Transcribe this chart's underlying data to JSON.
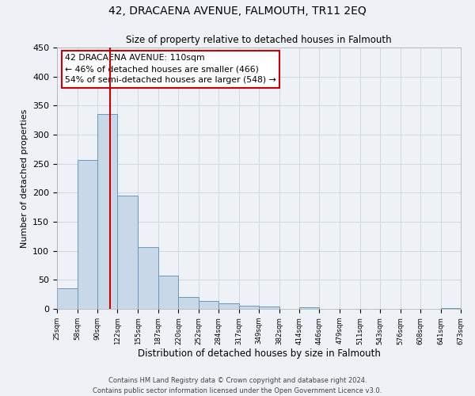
{
  "title": "42, DRACAENA AVENUE, FALMOUTH, TR11 2EQ",
  "subtitle": "Size of property relative to detached houses in Falmouth",
  "xlabel": "Distribution of detached houses by size in Falmouth",
  "ylabel": "Number of detached properties",
  "bar_edges": [
    25,
    58,
    90,
    122,
    155,
    187,
    220,
    252,
    284,
    317,
    349,
    382,
    414,
    446,
    479,
    511,
    543,
    576,
    608,
    641,
    673
  ],
  "bar_heights": [
    35,
    256,
    335,
    195,
    106,
    57,
    20,
    13,
    9,
    6,
    4,
    0,
    3,
    0,
    0,
    0,
    0,
    0,
    0,
    2
  ],
  "bar_color": "#c8d8e8",
  "bar_edge_color": "#6699bb",
  "vline_x": 110,
  "vline_color": "#cc0000",
  "ylim": [
    0,
    450
  ],
  "annotation_text": "42 DRACAENA AVENUE: 110sqm\n← 46% of detached houses are smaller (466)\n54% of semi-detached houses are larger (548) →",
  "annotation_box_color": "#cc0000",
  "footer_line1": "Contains HM Land Registry data © Crown copyright and database right 2024.",
  "footer_line2": "Contains public sector information licensed under the Open Government Licence v3.0.",
  "xtick_labels": [
    "25sqm",
    "58sqm",
    "90sqm",
    "122sqm",
    "155sqm",
    "187sqm",
    "220sqm",
    "252sqm",
    "284sqm",
    "317sqm",
    "349sqm",
    "382sqm",
    "414sqm",
    "446sqm",
    "479sqm",
    "511sqm",
    "543sqm",
    "576sqm",
    "608sqm",
    "641sqm",
    "673sqm"
  ],
  "grid_color": "#d0d8e8",
  "bg_color": "#eef2f7"
}
